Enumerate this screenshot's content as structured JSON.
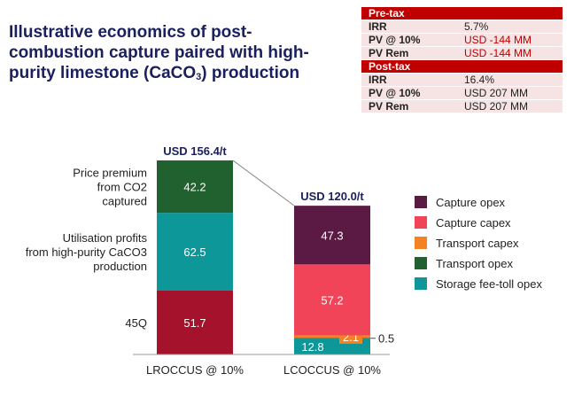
{
  "title": {
    "pre": "Illustrative economics of post-combustion capture paired with high-purity limestone (CaCO",
    "sub": "3",
    "post": ") production"
  },
  "table": {
    "pretax_header": "Pre-tax",
    "pretax_rows": [
      {
        "label": "IRR",
        "value": "5.7%"
      },
      {
        "label": "PV @ 10%",
        "value": "USD -144 MM"
      },
      {
        "label": "PV Rem",
        "value": "USD -144 MM"
      }
    ],
    "posttax_header": "Post-tax",
    "posttax_rows": [
      {
        "label": "IRR",
        "value": "16.4%"
      },
      {
        "label": "PV @ 10%",
        "value": "USD 207 MM"
      },
      {
        "label": "PV Rem",
        "value": "USD 207 MM"
      }
    ]
  },
  "chart_data": {
    "type": "bar",
    "stacked": true,
    "categories": [
      "LROCCUS @ 10%",
      "LCOCCUS @ 10%"
    ],
    "totals": [
      156.4,
      120.0
    ],
    "total_labels": [
      "USD 156.4/t",
      "USD 120.0/t"
    ],
    "bars": [
      {
        "category": "LROCCUS @ 10%",
        "segments": [
          {
            "name": "45Q",
            "value": 51.7,
            "label": "51.7",
            "color": "#a4122b",
            "side_label": "45Q"
          },
          {
            "name": "Utilisation profits",
            "value": 62.5,
            "label": "62.5",
            "color": "#0e9798",
            "side_label": "Utilisation profits from high-purity CaCO3 production"
          },
          {
            "name": "Price premium",
            "value": 42.2,
            "label": "42.2",
            "color": "#21612f",
            "side_label": "Price premium from CO2 captured"
          }
        ]
      },
      {
        "category": "LCOCCUS @ 10%",
        "segments": [
          {
            "name": "Storage fee-toll opex",
            "value": 12.8,
            "label": "12.8",
            "color": "#0e9798"
          },
          {
            "name": "Transport opex",
            "value": 0.5,
            "label": "0.5",
            "color": "#21612f"
          },
          {
            "name": "Transport capex",
            "value": 2.1,
            "label": "2.1",
            "color": "#f58220"
          },
          {
            "name": "Capture capex",
            "value": 57.2,
            "label": "57.2",
            "color": "#f24459"
          },
          {
            "name": "Capture opex",
            "value": 47.3,
            "label": "47.3",
            "color": "#5b1a43"
          }
        ]
      }
    ],
    "legend": [
      {
        "name": "Capture opex",
        "color": "#5b1a43"
      },
      {
        "name": "Capture capex",
        "color": "#f24459"
      },
      {
        "name": "Transport capex",
        "color": "#f58220"
      },
      {
        "name": "Transport opex",
        "color": "#21612f"
      },
      {
        "name": "Storage fee-toll opex",
        "color": "#0e9798"
      }
    ],
    "legend_position": "right",
    "grid": false
  }
}
